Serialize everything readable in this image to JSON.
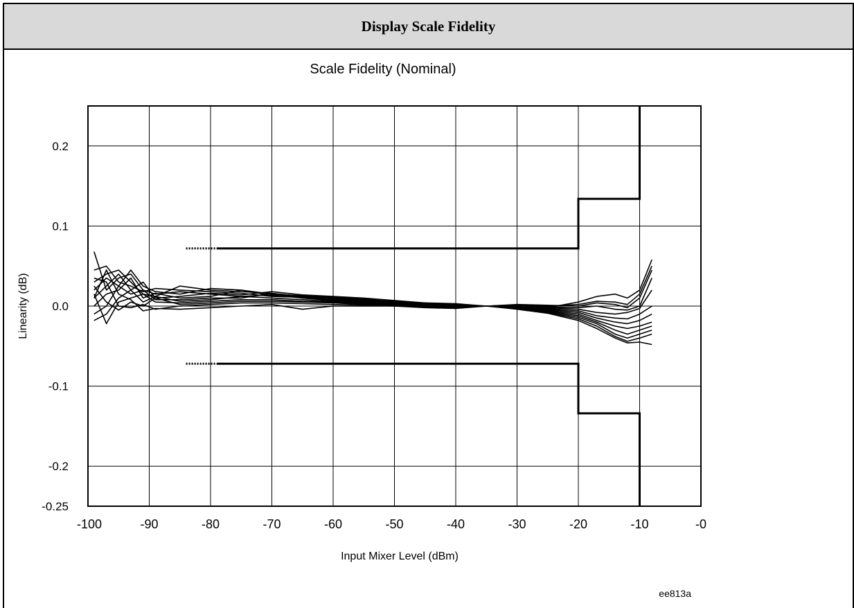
{
  "header": {
    "title": "Display Scale Fidelity"
  },
  "figure_id": "ee813a",
  "chart_data": {
    "type": "line",
    "title": "Scale Fidelity (Nominal)",
    "xlabel": "Input Mixer Level (dBm)",
    "ylabel": "Linearity (dB)",
    "xlim": [
      -100,
      0
    ],
    "ylim": [
      -0.25,
      0.25
    ],
    "x_ticks": [
      -100,
      -90,
      -80,
      -70,
      -60,
      -50,
      -40,
      -30,
      -20,
      -10,
      0
    ],
    "x_tick_labels": [
      "-100",
      "-90",
      "-80",
      "-70",
      "-60",
      "-50",
      "-40",
      "-30",
      "-20",
      "-10",
      "-0"
    ],
    "y_ticks": [
      -0.25,
      -0.2,
      -0.1,
      0.0,
      0.1,
      0.2
    ],
    "y_tick_labels": [
      "-0.25",
      "-0.2",
      "-0.1",
      "0.0",
      "0.1",
      "0.2"
    ],
    "grid": true,
    "limit_lines": {
      "upper": [
        [
          -84,
          0.072
        ],
        [
          -20,
          0.072
        ],
        [
          -20,
          0.134
        ],
        [
          -10,
          0.134
        ],
        [
          -10,
          0.25
        ]
      ],
      "lower": [
        [
          -84,
          -0.072
        ],
        [
          -20,
          -0.072
        ],
        [
          -20,
          -0.134
        ],
        [
          -10,
          -0.134
        ],
        [
          -10,
          -0.25
        ]
      ],
      "dotted_from": -84,
      "dotted_to": -79
    },
    "series": [
      {
        "x": [
          -99,
          -97,
          -95,
          -93,
          -91,
          -89,
          -85,
          -80,
          -75,
          -70,
          -65,
          -60,
          -55,
          -50,
          -45,
          -40,
          -35,
          -30,
          -25,
          -20,
          -17,
          -14,
          -12,
          -10,
          -8
        ],
        "values": [
          0.068,
          0.02,
          0.035,
          0.04,
          0.02,
          0.015,
          0.018,
          0.015,
          0.012,
          0.014,
          0.01,
          0.008,
          0.006,
          0.004,
          0.002,
          0.001,
          0.0,
          -0.001,
          -0.002,
          0.005,
          0.012,
          0.015,
          0.01,
          0.02,
          0.058
        ]
      },
      {
        "x": [
          -99,
          -97,
          -95,
          -93,
          -91,
          -89,
          -85,
          -80,
          -75,
          -70,
          -65,
          -60,
          -55,
          -50,
          -45,
          -40,
          -35,
          -30,
          -25,
          -20,
          -17,
          -14,
          -12,
          -10,
          -8
        ],
        "values": [
          0.045,
          0.05,
          0.03,
          0.025,
          0.018,
          0.022,
          0.02,
          0.018,
          0.016,
          0.012,
          0.011,
          0.009,
          0.007,
          0.005,
          0.003,
          0.002,
          0.0,
          0.001,
          0.0,
          0.002,
          0.006,
          0.005,
          0.002,
          0.015,
          0.05
        ]
      },
      {
        "x": [
          -99,
          -97,
          -95,
          -93,
          -91,
          -89,
          -85,
          -80,
          -75,
          -70,
          -65,
          -60,
          -55,
          -50,
          -45,
          -40,
          -35,
          -30,
          -25,
          -20,
          -17,
          -14,
          -12,
          -10,
          -8
        ],
        "values": [
          0.03,
          0.04,
          0.045,
          0.03,
          0.015,
          0.012,
          0.025,
          0.02,
          0.018,
          0.016,
          0.012,
          0.01,
          0.008,
          0.006,
          0.003,
          0.001,
          0.0,
          0.002,
          0.001,
          0.0,
          0.004,
          0.002,
          -0.002,
          0.01,
          0.045
        ]
      },
      {
        "x": [
          -99,
          -97,
          -95,
          -93,
          -91,
          -89,
          -85,
          -80,
          -75,
          -70,
          -65,
          -60,
          -55,
          -50,
          -45,
          -40,
          -35,
          -30,
          -25,
          -20,
          -17,
          -14,
          -12,
          -10,
          -8
        ],
        "values": [
          0.02,
          0.035,
          0.025,
          0.045,
          0.025,
          0.018,
          0.015,
          0.022,
          0.02,
          0.015,
          0.013,
          0.011,
          0.009,
          0.005,
          0.004,
          0.002,
          0.0,
          0.0,
          -0.001,
          -0.002,
          0.0,
          -0.004,
          -0.005,
          0.0,
          0.035
        ]
      },
      {
        "x": [
          -99,
          -97,
          -95,
          -93,
          -91,
          -89,
          -85,
          -80,
          -75,
          -70,
          -65,
          -60,
          -55,
          -50,
          -45,
          -40,
          -35,
          -30,
          -25,
          -20,
          -17,
          -14,
          -12,
          -10,
          -8
        ],
        "values": [
          0.01,
          0.025,
          0.04,
          0.02,
          0.03,
          0.01,
          0.012,
          0.016,
          0.014,
          0.018,
          0.014,
          0.012,
          0.01,
          0.007,
          0.004,
          0.003,
          0.0,
          0.001,
          -0.002,
          -0.004,
          -0.008,
          -0.01,
          -0.008,
          -0.003,
          0.02
        ]
      },
      {
        "x": [
          -99,
          -97,
          -95,
          -93,
          -91,
          -89,
          -85,
          -80,
          -75,
          -70,
          -65,
          -60,
          -55,
          -50,
          -45,
          -40,
          -35,
          -30,
          -25,
          -20,
          -17,
          -14,
          -12,
          -10,
          -8
        ],
        "values": [
          0.0,
          0.015,
          0.02,
          0.035,
          0.01,
          0.016,
          0.01,
          0.012,
          0.02,
          0.013,
          0.012,
          0.008,
          0.006,
          0.004,
          0.002,
          0.001,
          0.0,
          -0.001,
          -0.003,
          -0.006,
          -0.012,
          -0.015,
          -0.016,
          -0.01,
          0.0
        ]
      },
      {
        "x": [
          -99,
          -97,
          -95,
          -93,
          -91,
          -89,
          -85,
          -80,
          -75,
          -70,
          -65,
          -60,
          -55,
          -50,
          -45,
          -40,
          -35,
          -30,
          -25,
          -20,
          -17,
          -14,
          -12,
          -10,
          -8
        ],
        "values": [
          -0.01,
          0.0,
          0.025,
          0.015,
          0.02,
          0.008,
          0.008,
          0.01,
          0.01,
          0.016,
          0.01,
          0.007,
          0.005,
          0.003,
          0.001,
          0.0,
          0.0,
          -0.002,
          -0.004,
          -0.008,
          -0.015,
          -0.02,
          -0.022,
          -0.018,
          -0.01
        ]
      },
      {
        "x": [
          -99,
          -97,
          -95,
          -93,
          -91,
          -89,
          -85,
          -80,
          -75,
          -70,
          -65,
          -60,
          -55,
          -50,
          -45,
          -40,
          -35,
          -30,
          -25,
          -20,
          -17,
          -14,
          -12,
          -10,
          -8
        ],
        "values": [
          -0.018,
          -0.01,
          0.01,
          0.02,
          0.005,
          0.012,
          0.006,
          0.008,
          0.012,
          0.01,
          0.008,
          0.006,
          0.004,
          0.002,
          0.0,
          -0.001,
          0.0,
          -0.003,
          -0.005,
          -0.01,
          -0.018,
          -0.025,
          -0.028,
          -0.025,
          -0.02
        ]
      },
      {
        "x": [
          -99,
          -97,
          -95,
          -93,
          -91,
          -89,
          -85,
          -80,
          -75,
          -70,
          -65,
          -60,
          -55,
          -50,
          -45,
          -40,
          -35,
          -30,
          -25,
          -20,
          -17,
          -14,
          -12,
          -10,
          -8
        ],
        "values": [
          0.015,
          -0.022,
          0.005,
          0.01,
          0.015,
          0.005,
          0.004,
          0.006,
          0.008,
          0.008,
          0.006,
          0.005,
          0.003,
          0.002,
          0.0,
          -0.001,
          0.0,
          -0.002,
          -0.006,
          -0.012,
          -0.02,
          -0.03,
          -0.035,
          -0.03,
          -0.025
        ]
      },
      {
        "x": [
          -99,
          -97,
          -95,
          -93,
          -91,
          -89,
          -85,
          -80,
          -75,
          -70,
          -65,
          -60,
          -55,
          -50,
          -45,
          -40,
          -35,
          -30,
          -25,
          -20,
          -17,
          -14,
          -12,
          -10,
          -8
        ],
        "values": [
          0.025,
          0.005,
          -0.005,
          0.005,
          0.0,
          0.01,
          0.002,
          0.004,
          0.006,
          0.006,
          0.005,
          0.004,
          0.002,
          0.001,
          0.0,
          -0.002,
          0.0,
          -0.002,
          -0.007,
          -0.014,
          -0.022,
          -0.035,
          -0.04,
          -0.035,
          -0.03
        ]
      },
      {
        "x": [
          -99,
          -97,
          -95,
          -93,
          -91,
          -89,
          -85,
          -80,
          -75,
          -70,
          -65,
          -60,
          -55,
          -50,
          -45,
          -40,
          -35,
          -30,
          -25,
          -20,
          -17,
          -14,
          -12,
          -10,
          -8
        ],
        "values": [
          0.035,
          0.03,
          0.0,
          -0.002,
          0.002,
          -0.004,
          0.0,
          0.002,
          0.004,
          0.004,
          0.003,
          0.002,
          0.001,
          0.0,
          -0.001,
          -0.002,
          0.0,
          -0.003,
          -0.008,
          -0.016,
          -0.025,
          -0.038,
          -0.044,
          -0.04,
          -0.035
        ]
      },
      {
        "x": [
          -99,
          -97,
          -95,
          -93,
          -91,
          -89,
          -85,
          -80,
          -75,
          -70,
          -65,
          -60,
          -55,
          -50,
          -45,
          -40,
          -35,
          -30,
          -25,
          -20,
          -17,
          -14,
          -12,
          -10,
          -8
        ],
        "values": [
          0.01,
          0.045,
          0.015,
          0.008,
          -0.006,
          -0.003,
          -0.004,
          -0.002,
          0.0,
          0.002,
          -0.004,
          0.0,
          0.0,
          0.0,
          -0.002,
          -0.003,
          0.0,
          -0.004,
          -0.009,
          -0.018,
          -0.028,
          -0.04,
          -0.046,
          -0.045,
          -0.048
        ]
      }
    ]
  }
}
